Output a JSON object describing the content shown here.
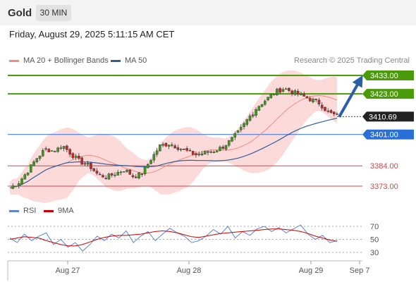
{
  "header": {
    "symbol": "Gold",
    "timeframe": "30 MIN"
  },
  "timestamp": "Friday, August 29, 2025 5:11:15 AM CET",
  "legend": {
    "bollinger_label": "MA 20 + Bollinger Bands",
    "ma50_label": "MA 50",
    "bollinger_color": "#f28b82",
    "ma50_color": "#2f5f9e",
    "research": "Research © 2025 Trading Central"
  },
  "rsi_legend": {
    "rsi_label": "RSI",
    "ma_label": "9MA",
    "rsi_color": "#5b84d6",
    "ma_color": "#d00000"
  },
  "chart_data": [
    {
      "type": "candlestick",
      "price_range": [
        3365,
        3440
      ],
      "current_price": {
        "value": 3410.69,
        "label": "3410.69"
      },
      "levels": [
        {
          "value": 3433.0,
          "label": "3433.00",
          "kind": "resistance",
          "color": "#4a9a0a"
        },
        {
          "value": 3423.0,
          "label": "3423.00",
          "kind": "resistance",
          "color": "#4a9a0a"
        },
        {
          "value": 3401.0,
          "label": "3401.00",
          "kind": "pivot",
          "color": "#2a6fd6"
        },
        {
          "value": 3384.0,
          "label": "3384.00",
          "kind": "support",
          "color": "#d04848"
        },
        {
          "value": 3373.0,
          "label": "3373.00",
          "kind": "support",
          "color": "#d04848"
        }
      ],
      "forecast": {
        "from_price": 3410.5,
        "to_price": 3433.0,
        "direction": "up"
      },
      "x_ticks": [
        "Aug 27",
        "Aug 28",
        "Aug 29",
        "Sep 7"
      ],
      "close_path": [
        3372,
        3375,
        3381,
        3388,
        3393,
        3392,
        3395,
        3390,
        3386,
        3384,
        3379,
        3378,
        3380,
        3382,
        3378,
        3380,
        3388,
        3395,
        3396,
        3394,
        3392,
        3390,
        3391,
        3392,
        3394,
        3398,
        3403,
        3410,
        3416,
        3420,
        3424,
        3426,
        3424,
        3422,
        3420,
        3418,
        3413,
        3411
      ]
    },
    {
      "type": "line",
      "title": "RSI",
      "y_ticks": [
        70,
        50,
        30
      ],
      "ylim": [
        20,
        80
      ],
      "series": [
        {
          "name": "RSI",
          "values": [
            52,
            45,
            58,
            48,
            55,
            60,
            42,
            50,
            38,
            45,
            32,
            42,
            55,
            48,
            58,
            52,
            63,
            45,
            55,
            62,
            48,
            58,
            67,
            60,
            55,
            45,
            48,
            55,
            65,
            58,
            70,
            52,
            62,
            56,
            66,
            70,
            62,
            68,
            60,
            66,
            72,
            58,
            50,
            56,
            45,
            48
          ]
        },
        {
          "name": "9MA",
          "values": [
            50,
            52,
            54,
            53,
            52,
            48,
            45,
            42,
            40,
            40,
            42,
            46,
            50,
            53,
            55,
            56,
            56,
            57,
            58,
            60,
            62,
            63,
            62,
            60,
            57,
            54,
            53,
            55,
            57,
            59,
            60,
            61,
            62,
            63,
            64,
            65,
            66,
            66,
            65,
            64,
            62,
            59,
            55,
            52,
            49,
            47
          ]
        }
      ]
    }
  ]
}
